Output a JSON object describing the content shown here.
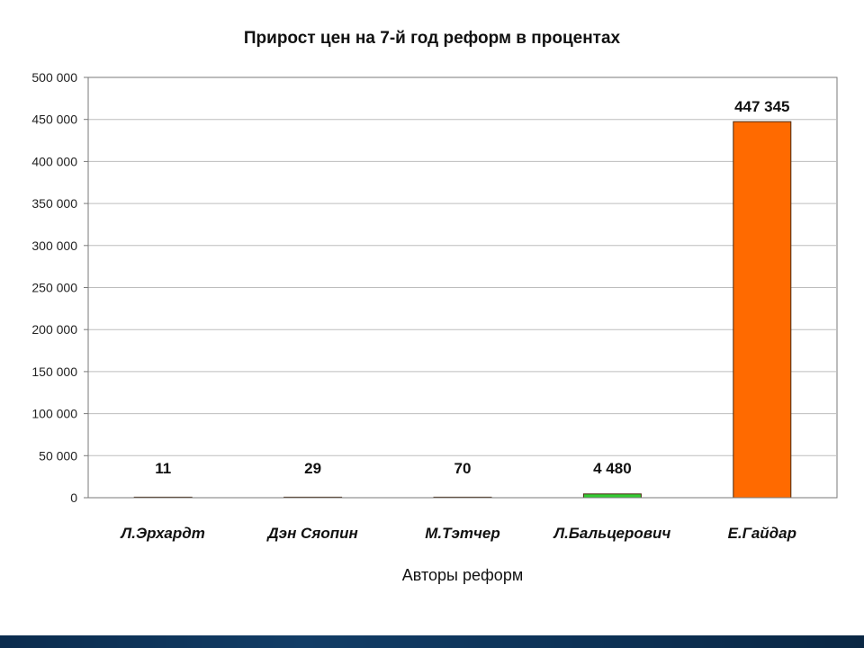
{
  "chart_data": {
    "type": "bar",
    "title": "Прирост цен на 7-й год реформ в процентах",
    "xlabel": "Авторы реформ",
    "ylabel": "",
    "ylim": [
      0,
      500000
    ],
    "yticks": [
      {
        "value": 0,
        "label": "0"
      },
      {
        "value": 50000,
        "label": "50 000"
      },
      {
        "value": 100000,
        "label": "100 000"
      },
      {
        "value": 150000,
        "label": "150 000"
      },
      {
        "value": 200000,
        "label": "200 000"
      },
      {
        "value": 250000,
        "label": "250 000"
      },
      {
        "value": 300000,
        "label": "300 000"
      },
      {
        "value": 350000,
        "label": "350 000"
      },
      {
        "value": 400000,
        "label": "400 000"
      },
      {
        "value": 450000,
        "label": "450 000"
      },
      {
        "value": 500000,
        "label": "500 000"
      }
    ],
    "grid": true,
    "legend": "none",
    "categories": [
      "Л.Эрхардт",
      "Дэн Сяопин",
      "М.Тэтчер",
      "Л.Бальцерович",
      "Е.Гайдар"
    ],
    "values": [
      11,
      29,
      70,
      4480,
      447345
    ],
    "data_labels": [
      "11",
      "29",
      "70",
      "4 480",
      "447 345"
    ],
    "bar_colors": [
      "#3a7bd5",
      "#e0b020",
      "#8a5ab0",
      "#33cc33",
      "#ff6a00"
    ]
  }
}
